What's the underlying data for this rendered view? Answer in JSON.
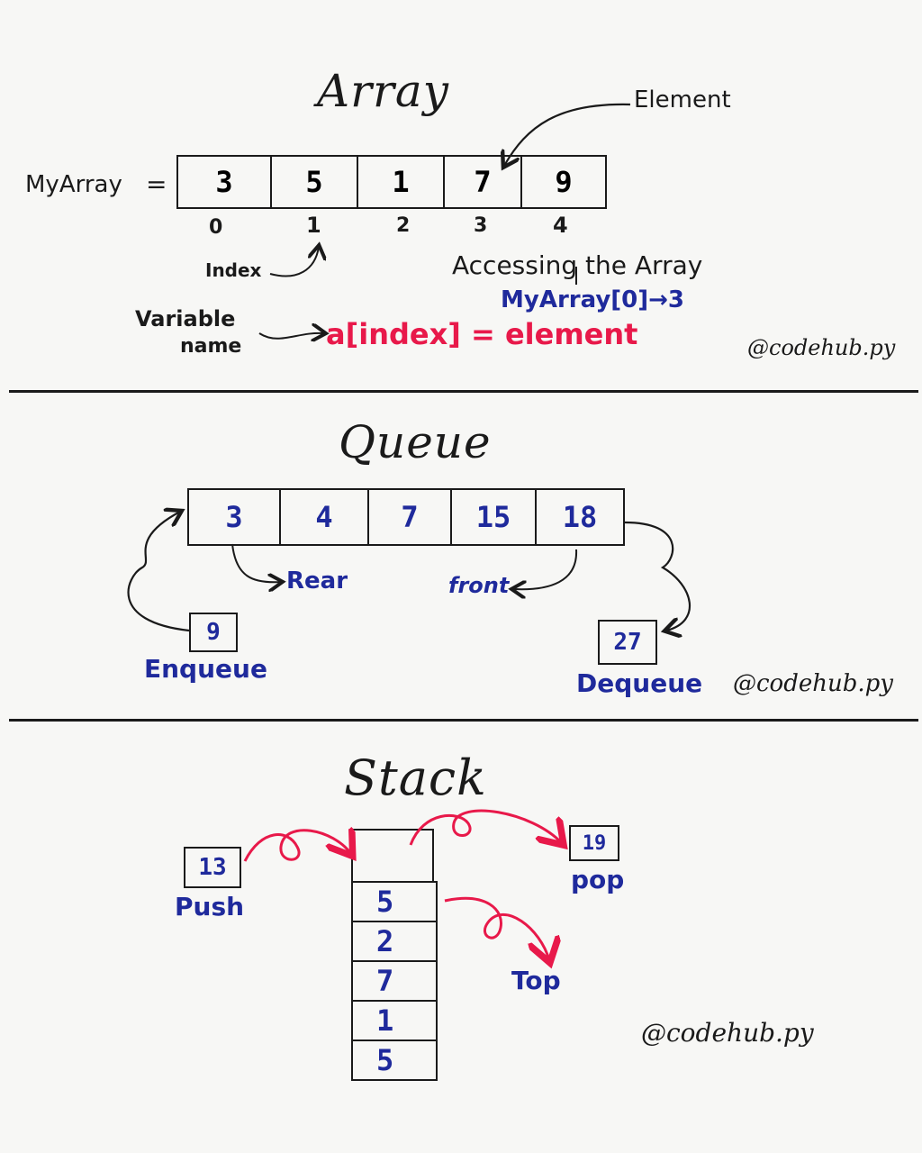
{
  "array": {
    "title": "Array",
    "element_label": "Element",
    "var_name": "MyArray",
    "equals": "=",
    "values": [
      "3",
      "5",
      "1",
      "7",
      "9"
    ],
    "indices": [
      "0",
      "1",
      "2",
      "3",
      "4"
    ],
    "index_label": "Index",
    "accessing_label": "Accessing the Array",
    "access_example": "MyArray[0]→3",
    "variable_label_line1": "Variable",
    "variable_label_line2": "name",
    "syntax": "a[index] = element",
    "watermark": "@codehub.py"
  },
  "queue": {
    "title": "Queue",
    "values": [
      "3",
      "4",
      "7",
      "15",
      "18"
    ],
    "rear_label": "Rear",
    "front_label": "front",
    "enqueue_value": "9",
    "enqueue_label": "Enqueue",
    "dequeue_value": "27",
    "dequeue_label": "Dequeue",
    "watermark": "@codehub.py"
  },
  "stack": {
    "title": "Stack",
    "values": [
      "5",
      "2",
      "7",
      "1",
      "5"
    ],
    "push_value": "13",
    "push_label": "Push",
    "pop_value": "19",
    "pop_label": "pop",
    "top_label": "Top",
    "watermark": "@codehub.py"
  },
  "colors": {
    "ink": "#1a1a1a",
    "blue": "#1f2a9c",
    "red": "#e8194a"
  }
}
